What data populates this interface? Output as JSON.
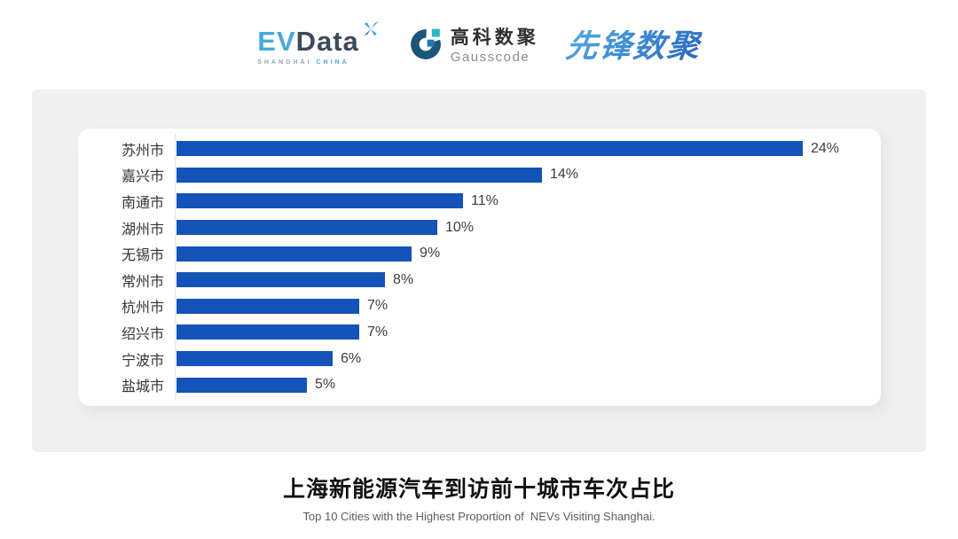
{
  "colors": {
    "bar": "#1453b8",
    "panel_bg": "#f0f0f0",
    "card_bg": "#ffffff",
    "axis_line": "#e0e0e0",
    "evdata_accent": "#4aa9da",
    "evdata_dark": "#3c4a59",
    "gauss_ring": "#1b5578",
    "gauss_teal": "#29b8c6",
    "gauss_blue": "#2274ba",
    "xianfeng_gradient_start": "#57aae0",
    "xianfeng_gradient_end": "#2a66bb"
  },
  "header": {
    "evdata_logo": {
      "part1": "EV",
      "part2": "Data",
      "subtext_left": "SHANGHAI ",
      "subtext_right": "CHINA"
    },
    "gausscode_logo": {
      "name_cn": "高科数聚",
      "name_en": "Gausscode"
    },
    "xianfeng_logo": {
      "text": "先锋数聚"
    }
  },
  "chart_data": {
    "type": "bar",
    "orientation": "horizontal",
    "title": "上海新能源汽车到访前十城市车次占比",
    "subtitle": "Top 10 Cities with the Highest Proportion of  NEVs Visiting Shanghai.",
    "categories": [
      "苏州市",
      "嘉兴市",
      "南通市",
      "湖州市",
      "无锡市",
      "常州市",
      "杭州市",
      "绍兴市",
      "宁波市",
      "盐城市"
    ],
    "values": [
      24,
      14,
      11,
      10,
      9,
      8,
      7,
      7,
      6,
      5
    ],
    "value_labels": [
      "24%",
      "14%",
      "11%",
      "10%",
      "9%",
      "8%",
      "7%",
      "7%",
      "6%",
      "5%"
    ],
    "unit": "%",
    "xlim": [
      0,
      27
    ],
    "grid": false,
    "legend": null,
    "bar_color": "#1453b8"
  },
  "footer": {
    "title": "上海新能源汽车到访前十城市车次占比",
    "subtitle": "Top 10 Cities with the Highest Proportion of  NEVs Visiting Shanghai."
  }
}
